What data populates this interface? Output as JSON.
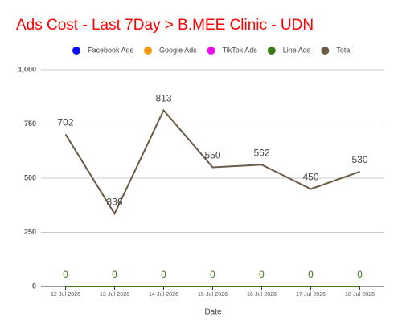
{
  "chart_data": {
    "type": "line",
    "title": "Ads Cost - Last 7Day > B.MEE Clinic - UDN",
    "x_label": "Date",
    "categories": [
      "12-Jul-2026",
      "13-Jul-2026",
      "14-Jul-2026",
      "15-Jul-2026",
      "16-Jul-2026",
      "17-Jul-2026",
      "18-Jul-2026"
    ],
    "series": [
      {
        "name": "Facebook Ads",
        "color": "#0b0bf0",
        "values": [
          0,
          0,
          0,
          0,
          0,
          0,
          0
        ],
        "show_labels": false
      },
      {
        "name": "Google Ads",
        "color": "#f59a0c",
        "values": [
          0,
          0,
          0,
          0,
          0,
          0,
          0
        ],
        "show_labels": false
      },
      {
        "name": "TikTok Ads",
        "color": "#f00cf0",
        "values": [
          0,
          0,
          0,
          0,
          0,
          0,
          0
        ],
        "show_labels": false
      },
      {
        "name": "Line Ads",
        "color": "#3c7a1c",
        "values": [
          0,
          0,
          0,
          0,
          0,
          0,
          0
        ],
        "show_labels": true
      },
      {
        "name": "Total",
        "color": "#6b5a46",
        "values": [
          702,
          336,
          813,
          550,
          562,
          450,
          530
        ],
        "show_labels": true
      }
    ],
    "ylim": [
      0,
      1000
    ],
    "yticks": [
      0,
      250,
      500,
      750,
      {
        "value": 1000,
        "label": "1,000"
      }
    ],
    "grid": true,
    "legend": "top"
  }
}
